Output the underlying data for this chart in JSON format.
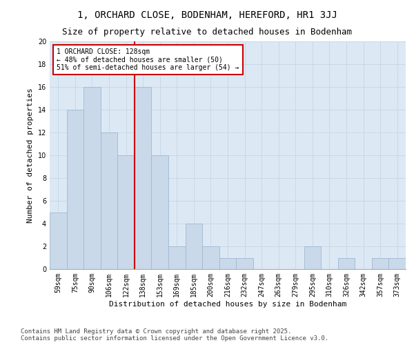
{
  "title": "1, ORCHARD CLOSE, BODENHAM, HEREFORD, HR1 3JJ",
  "subtitle": "Size of property relative to detached houses in Bodenham",
  "xlabel": "Distribution of detached houses by size in Bodenham",
  "ylabel": "Number of detached properties",
  "categories": [
    "59sqm",
    "75sqm",
    "90sqm",
    "106sqm",
    "122sqm",
    "138sqm",
    "153sqm",
    "169sqm",
    "185sqm",
    "200sqm",
    "216sqm",
    "232sqm",
    "247sqm",
    "263sqm",
    "279sqm",
    "295sqm",
    "310sqm",
    "326sqm",
    "342sqm",
    "357sqm",
    "373sqm"
  ],
  "values": [
    5,
    14,
    16,
    12,
    10,
    16,
    10,
    2,
    4,
    2,
    1,
    1,
    0,
    0,
    0,
    2,
    0,
    1,
    0,
    1,
    1
  ],
  "bar_color": "#c9d9ea",
  "bar_edge_color": "#9fb8d0",
  "vline_x_index": 4.5,
  "vline_color": "#cc0000",
  "annotation_text": "1 ORCHARD CLOSE: 128sqm\n← 48% of detached houses are smaller (50)\n51% of semi-detached houses are larger (54) →",
  "annotation_box_facecolor": "#ffffff",
  "annotation_box_edgecolor": "#cc0000",
  "ylim": [
    0,
    20
  ],
  "yticks": [
    0,
    2,
    4,
    6,
    8,
    10,
    12,
    14,
    16,
    18,
    20
  ],
  "grid_color": "#c8d8e8",
  "plot_bg_color": "#dce9f5",
  "fig_bg_color": "#ffffff",
  "footer_text": "Contains HM Land Registry data © Crown copyright and database right 2025.\nContains public sector information licensed under the Open Government Licence v3.0.",
  "title_fontsize": 10,
  "subtitle_fontsize": 9,
  "xlabel_fontsize": 8,
  "ylabel_fontsize": 8,
  "tick_fontsize": 7,
  "annotation_fontsize": 7,
  "footer_fontsize": 6.5
}
